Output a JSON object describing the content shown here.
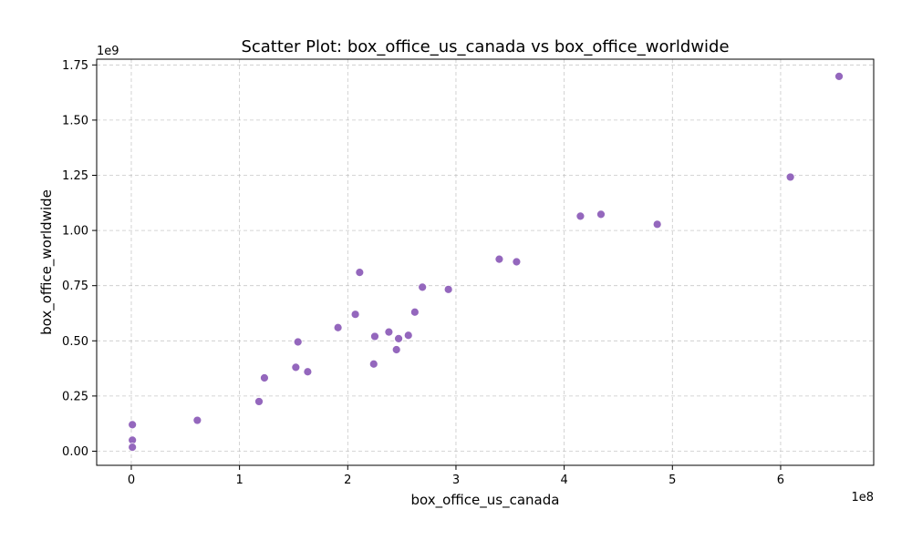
{
  "chart_data": {
    "type": "scatter",
    "title": "Scatter Plot: box_office_us_canada vs box_office_worldwide",
    "xlabel": "box_office_us_canada",
    "ylabel": "box_office_worldwide",
    "x_offset_text": "1e8",
    "y_offset_text": "1e9",
    "x_ticks": [
      0,
      1,
      2,
      3,
      4,
      5,
      6
    ],
    "x_tick_labels": [
      "0",
      "1",
      "2",
      "3",
      "4",
      "5",
      "6"
    ],
    "y_ticks": [
      0,
      0.25,
      0.5,
      0.75,
      1.0,
      1.25,
      1.5,
      1.75
    ],
    "y_tick_labels": [
      "0.00",
      "0.25",
      "0.50",
      "0.75",
      "1.00",
      "1.25",
      "1.50",
      "1.75"
    ],
    "xlim": [
      -0.32,
      6.86
    ],
    "ylim": [
      -0.064,
      1.776
    ],
    "grid": true,
    "marker_color": "#9467bd",
    "points": [
      {
        "x": 0.01,
        "y": 0.12
      },
      {
        "x": 0.01,
        "y": 0.05
      },
      {
        "x": 0.01,
        "y": 0.018
      },
      {
        "x": 0.61,
        "y": 0.14
      },
      {
        "x": 1.18,
        "y": 0.225
      },
      {
        "x": 1.23,
        "y": 0.332
      },
      {
        "x": 1.52,
        "y": 0.38
      },
      {
        "x": 1.54,
        "y": 0.495
      },
      {
        "x": 1.63,
        "y": 0.36
      },
      {
        "x": 1.91,
        "y": 0.56
      },
      {
        "x": 2.07,
        "y": 0.62
      },
      {
        "x": 2.11,
        "y": 0.81
      },
      {
        "x": 2.24,
        "y": 0.395
      },
      {
        "x": 2.25,
        "y": 0.52
      },
      {
        "x": 2.38,
        "y": 0.54
      },
      {
        "x": 2.45,
        "y": 0.46
      },
      {
        "x": 2.47,
        "y": 0.51
      },
      {
        "x": 2.56,
        "y": 0.525
      },
      {
        "x": 2.62,
        "y": 0.63
      },
      {
        "x": 2.69,
        "y": 0.743
      },
      {
        "x": 2.93,
        "y": 0.733
      },
      {
        "x": 3.4,
        "y": 0.87
      },
      {
        "x": 3.56,
        "y": 0.858
      },
      {
        "x": 4.15,
        "y": 1.065
      },
      {
        "x": 4.34,
        "y": 1.073
      },
      {
        "x": 4.86,
        "y": 1.028
      },
      {
        "x": 6.09,
        "y": 1.242
      },
      {
        "x": 6.54,
        "y": 1.698
      }
    ]
  }
}
